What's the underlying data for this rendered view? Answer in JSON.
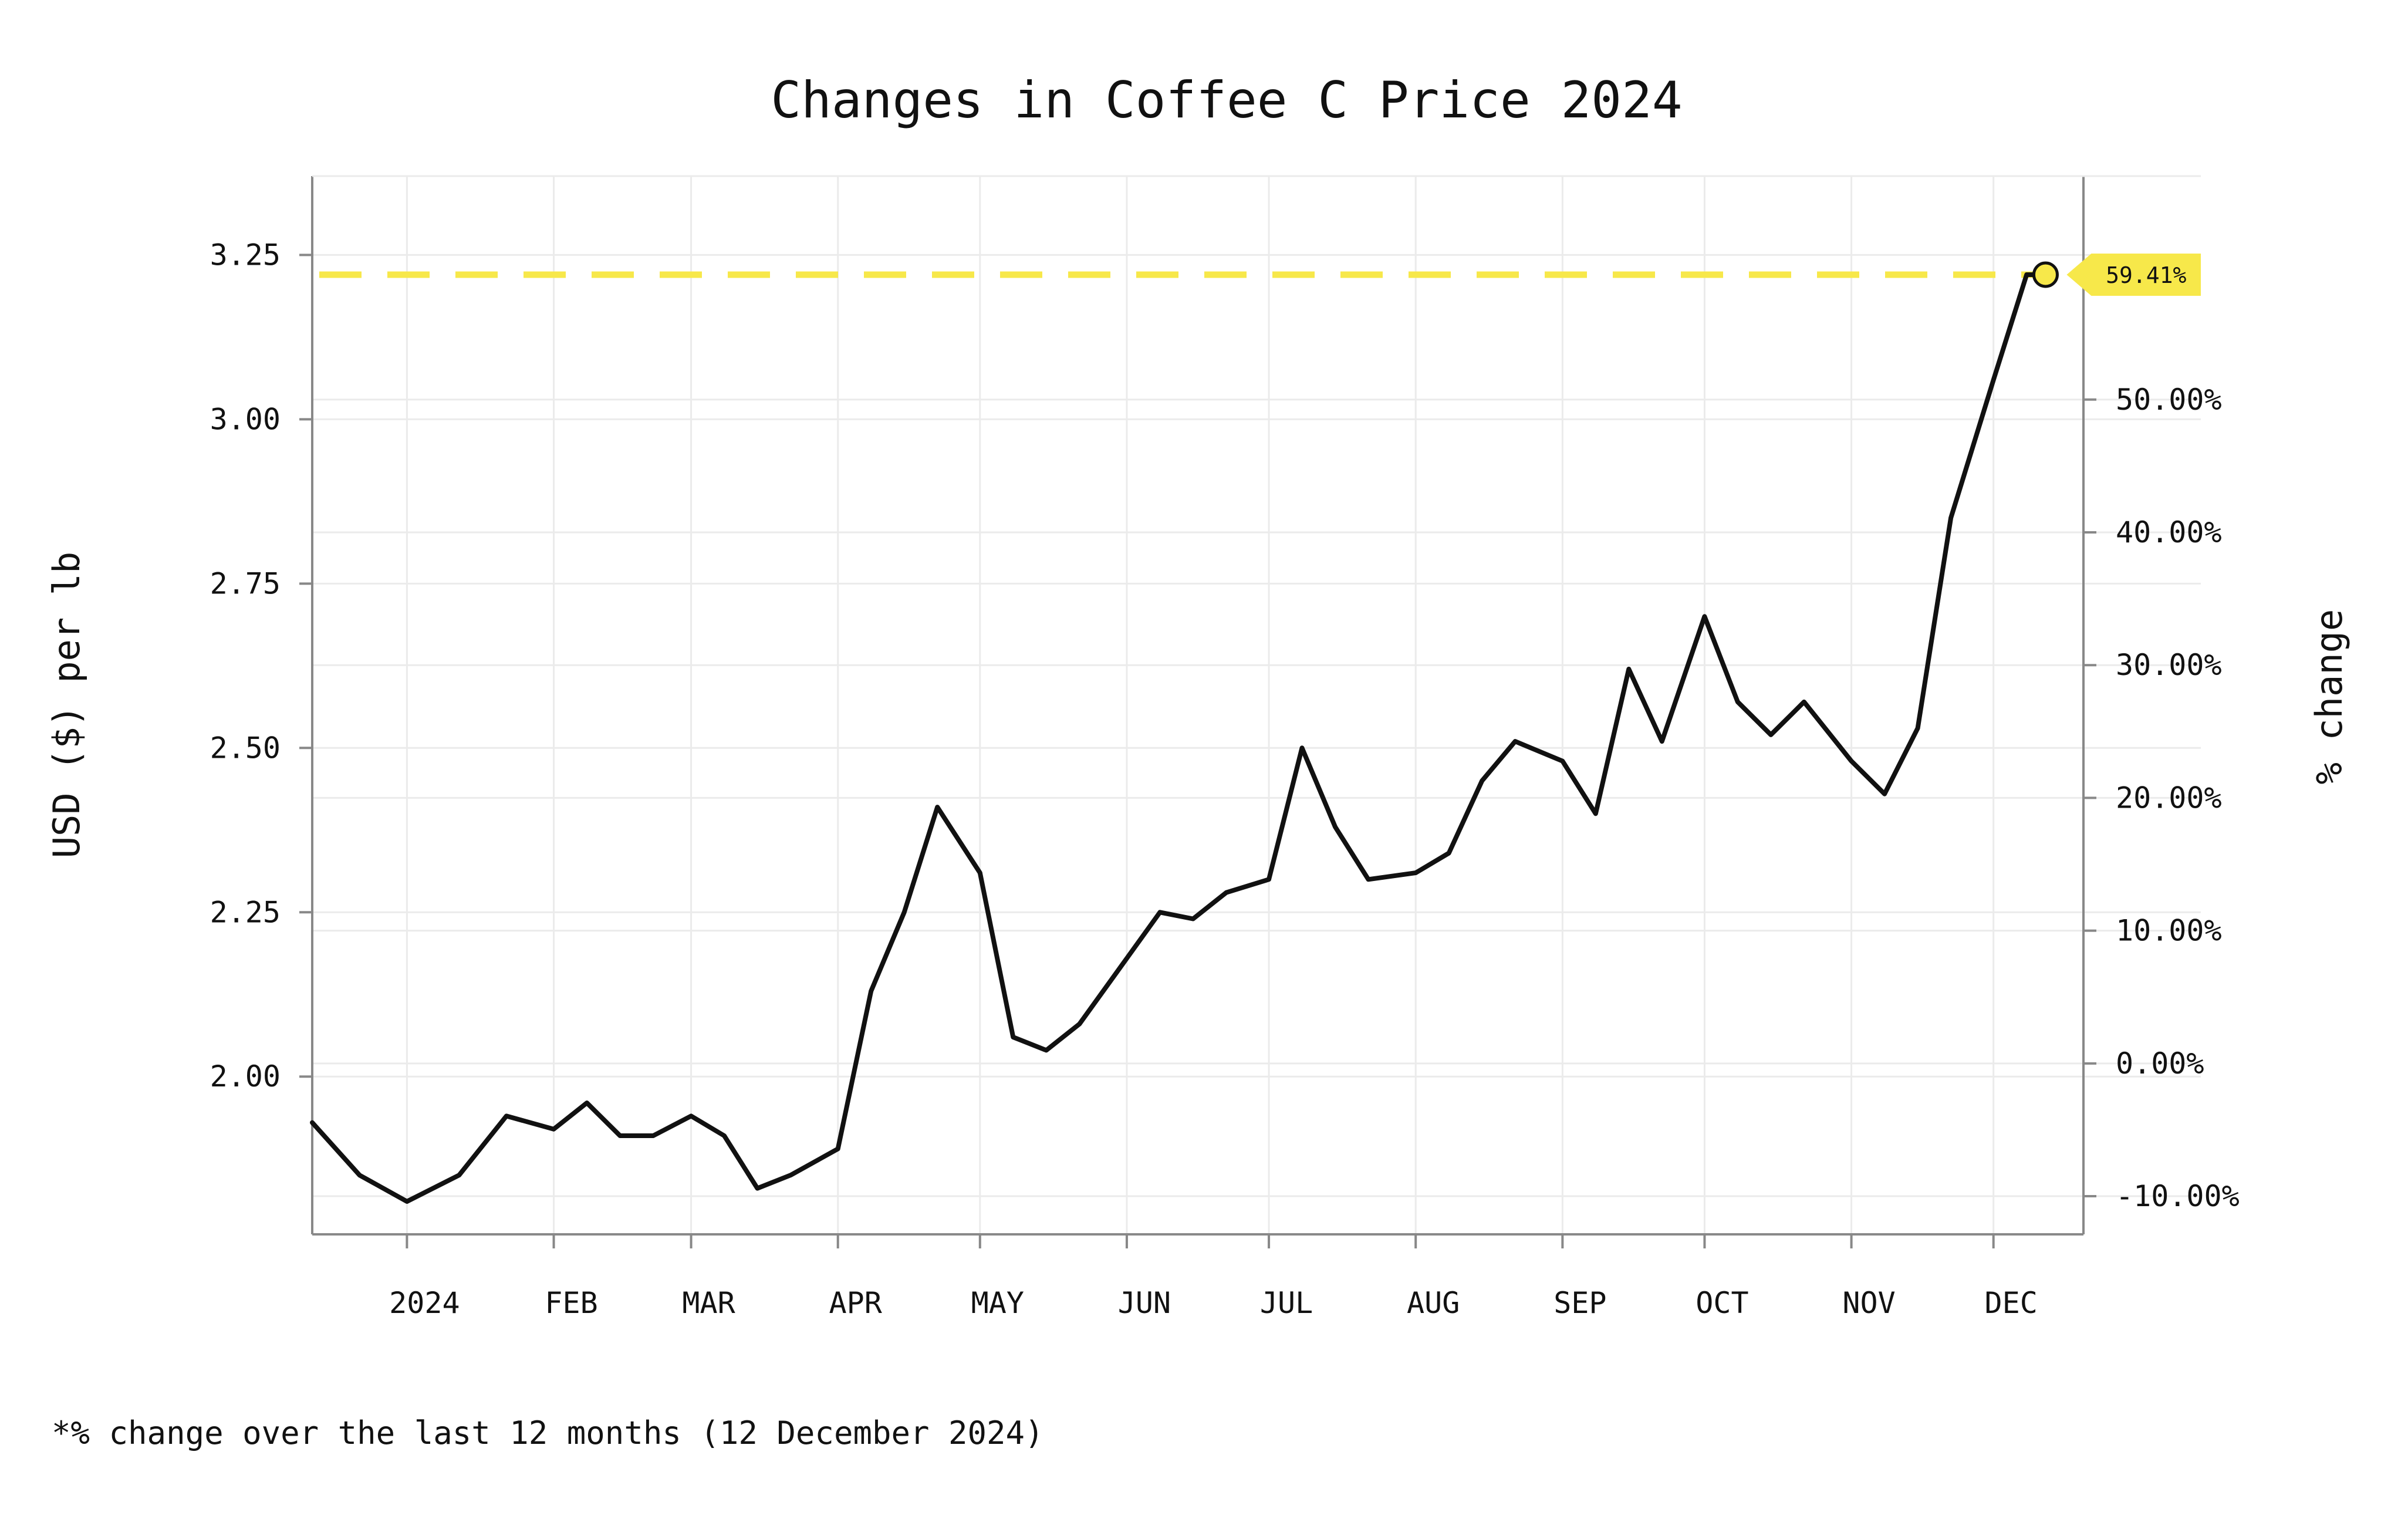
{
  "chart_data": {
    "type": "line",
    "title": "Changes in Coffee C Price 2024",
    "ylabel": "USD ($) per lb",
    "y2label": "% change",
    "footnote": "*% change over the last 12 months (12 December 2024)",
    "xlim": [
      "2023-12-12",
      "2024-12-20"
    ],
    "ylim": [
      1.76,
      3.37
    ],
    "y_ticks": [
      2.0,
      2.25,
      2.5,
      2.75,
      3.0,
      3.25
    ],
    "y_tick_labels": [
      "2.00",
      "2.25",
      "2.50",
      "2.75",
      "3.00",
      "3.25"
    ],
    "y2_ticks": [
      -10,
      0,
      10,
      20,
      30,
      40,
      50
    ],
    "y2_tick_labels": [
      "-10.00%",
      "0.00%",
      "10.00%",
      "20.00%",
      "30.00%",
      "40.00%",
      "50.00%"
    ],
    "y2_baseline_price": 2.02,
    "x_ticks": [
      "2024-01-01",
      "2024-02-01",
      "2024-03-01",
      "2024-04-01",
      "2024-05-01",
      "2024-06-01",
      "2024-07-01",
      "2024-08-01",
      "2024-09-01",
      "2024-10-01",
      "2024-11-01",
      "2024-12-01"
    ],
    "x_tick_labels": [
      "2024",
      "FEB",
      "MAR",
      "APR",
      "MAY",
      "JUN",
      "JUL",
      "AUG",
      "SEP",
      "OCT",
      "NOV",
      "DEC"
    ],
    "grid": true,
    "series": [
      {
        "color": "#111111",
        "x": [
          "2023-12-12",
          "2023-12-22",
          "2024-01-01",
          "2024-01-12",
          "2024-01-22",
          "2024-02-01",
          "2024-02-08",
          "2024-02-15",
          "2024-02-22",
          "2024-03-01",
          "2024-03-08",
          "2024-03-15",
          "2024-03-22",
          "2024-04-01",
          "2024-04-08",
          "2024-04-15",
          "2024-04-22",
          "2024-05-01",
          "2024-05-08",
          "2024-05-15",
          "2024-05-22",
          "2024-06-01",
          "2024-06-08",
          "2024-06-15",
          "2024-06-22",
          "2024-07-01",
          "2024-07-08",
          "2024-07-15",
          "2024-07-22",
          "2024-08-01",
          "2024-08-08",
          "2024-08-15",
          "2024-08-22",
          "2024-09-01",
          "2024-09-08",
          "2024-09-15",
          "2024-09-22",
          "2024-10-01",
          "2024-10-08",
          "2024-10-15",
          "2024-10-22",
          "2024-11-01",
          "2024-11-08",
          "2024-11-15",
          "2024-11-22",
          "2024-12-01",
          "2024-12-08",
          "2024-12-12"
        ],
        "values": [
          1.93,
          1.85,
          1.81,
          1.85,
          1.94,
          1.92,
          1.96,
          1.91,
          1.91,
          1.94,
          1.91,
          1.83,
          1.85,
          1.89,
          2.13,
          2.25,
          2.41,
          2.31,
          2.06,
          2.04,
          2.08,
          2.18,
          2.25,
          2.24,
          2.28,
          2.3,
          2.5,
          2.38,
          2.3,
          2.31,
          2.34,
          2.45,
          2.51,
          2.48,
          2.4,
          2.62,
          2.51,
          2.7,
          2.57,
          2.52,
          2.57,
          2.48,
          2.43,
          2.53,
          2.85,
          3.06,
          3.22,
          3.22
        ]
      }
    ],
    "reference_line": {
      "value": 3.22,
      "color": "#f7e84a",
      "style": "dashed"
    },
    "last_point": {
      "date": "2024-12-12",
      "value": 3.22
    },
    "callout": {
      "label": "59.41%",
      "color": "#f7e84a"
    }
  }
}
